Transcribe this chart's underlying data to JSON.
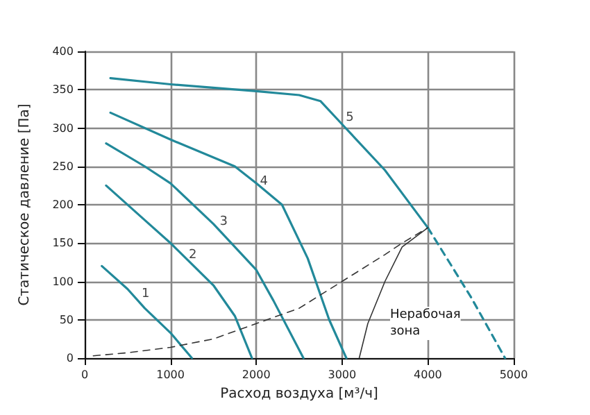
{
  "chart_data": {
    "type": "line",
    "xlabel": "Расход воздуха [м³/ч]",
    "ylabel": "Статическое давление [Па]",
    "xlim": [
      0,
      5000
    ],
    "xticks": [
      0,
      1000,
      2000,
      3000,
      4000,
      5000
    ],
    "ylim": [
      0,
      400
    ],
    "yticks": [
      0,
      50,
      100,
      150,
      200,
      250,
      300,
      350,
      400
    ],
    "grid": true,
    "marker": "none",
    "series": [
      {
        "color": "#22899a",
        "line_style": "solid",
        "x": [
          200,
          500,
          700,
          1000,
          1250
        ],
        "values": [
          120,
          90,
          65,
          33,
          0
        ]
      },
      {
        "color": "#22899a",
        "line_style": "solid",
        "x": [
          250,
          700,
          1000,
          1500,
          1750,
          1950
        ],
        "values": [
          225,
          180,
          150,
          95,
          55,
          0
        ]
      },
      {
        "color": "#22899a",
        "line_style": "solid",
        "x": [
          250,
          700,
          1000,
          1500,
          2000,
          2200,
          2550
        ],
        "values": [
          280,
          250,
          228,
          175,
          115,
          75,
          0
        ]
      },
      {
        "color": "#22899a",
        "line_style": "solid",
        "x": [
          300,
          1000,
          1750,
          2000,
          2300,
          2600,
          2850,
          3050
        ],
        "values": [
          320,
          285,
          250,
          228,
          200,
          130,
          50,
          0
        ]
      },
      {
        "color": "#22899a",
        "line_style": "solid",
        "x": [
          300,
          1000,
          2000,
          2500,
          2750,
          3000,
          3500,
          4000
        ],
        "values": [
          365,
          357,
          348,
          343,
          335,
          305,
          245,
          170
        ]
      },
      {
        "color": "#22899a",
        "line_style": "dashed",
        "x": [
          4000,
          4500,
          4900
        ],
        "values": [
          170,
          80,
          0
        ]
      },
      {
        "color": "#333333",
        "line_style": "dashed",
        "x": [
          100,
          500,
          1000,
          1500,
          2000,
          2500,
          3000,
          3500,
          3700,
          4000
        ],
        "values": [
          3,
          7,
          14,
          25,
          45,
          65,
          100,
          135,
          150,
          170
        ]
      },
      {
        "color": "#333333",
        "line_style": "solid",
        "x": [
          3200,
          3300,
          3500,
          3700,
          4000
        ],
        "values": [
          0,
          45,
          100,
          145,
          170
        ]
      }
    ],
    "annotations": [
      {
        "text": "1",
        "x": 710,
        "y": 83
      },
      {
        "text": "2",
        "x": 1260,
        "y": 134
      },
      {
        "text": "3",
        "x": 1620,
        "y": 177
      },
      {
        "text": "4",
        "x": 2090,
        "y": 230
      },
      {
        "text": "5",
        "x": 3090,
        "y": 313
      },
      "Нерабочая\nзона"
    ]
  }
}
